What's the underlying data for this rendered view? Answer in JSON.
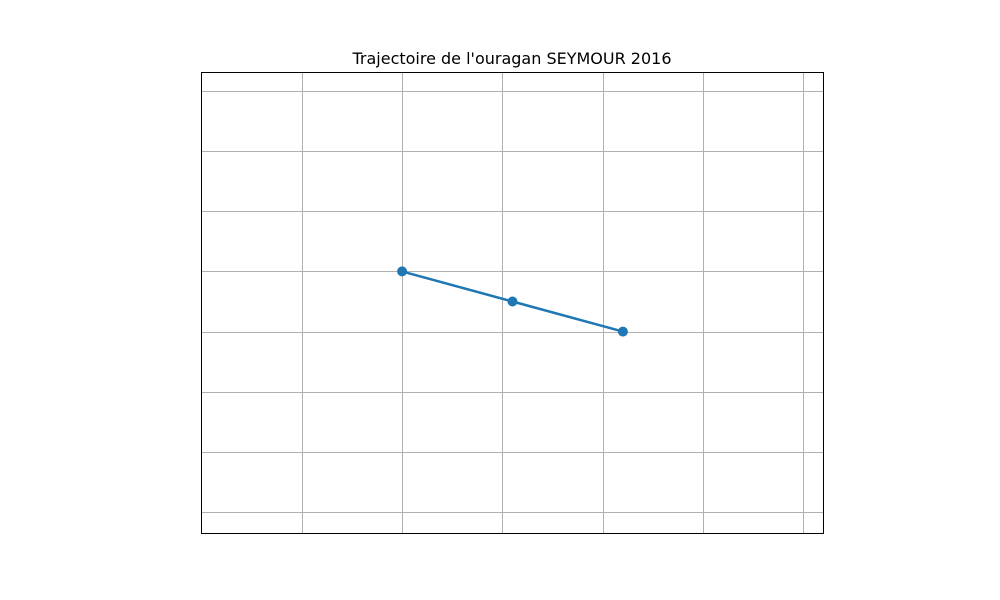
{
  "chart_data": {
    "type": "line",
    "title": "Trajectoire de l'ouragan SEYMOUR 2016",
    "xlabel": "",
    "ylabel": "",
    "xlim": [
      -130,
      -99
    ],
    "ylim": [
      14,
      29.3
    ],
    "x_gridlines": [
      -125,
      -120,
      -115,
      -110,
      -105,
      -100
    ],
    "y_gridlines": [
      14.7,
      16.7,
      18.7,
      20.7,
      22.7,
      24.7,
      26.7,
      28.7
    ],
    "grid": true,
    "legend": "none",
    "series": [
      {
        "x": [
          -120,
          -114.5,
          -109
        ],
        "y": [
          22.7,
          21.7,
          20.7
        ],
        "color": "#1f77b4",
        "marker": "circle"
      }
    ]
  }
}
